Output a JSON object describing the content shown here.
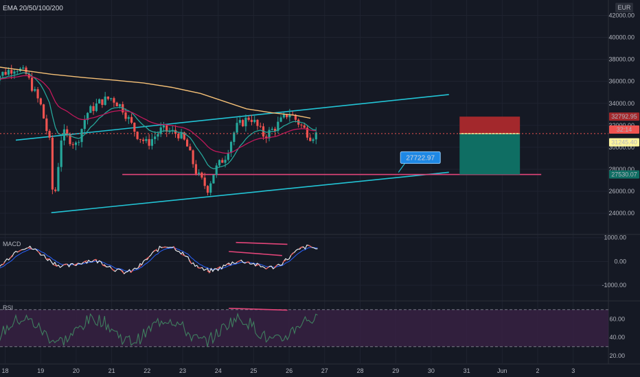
{
  "header": {
    "indicator_title": "EMA 20/50/100/200",
    "currency": "EUR"
  },
  "panes": {
    "macd_label": "MACD",
    "rsi_label": "RSI"
  },
  "colors": {
    "bg": "#151924",
    "up": "#26a69a",
    "down": "#ef5350",
    "ema_fast": "#26a69a",
    "ema_mid": "#c2185b",
    "ema_slow": "#f6c177",
    "channel": "#22c5d6",
    "support": "#e5457a",
    "rsi_fill": "#3b2146",
    "tp_zone": "#0f6e63",
    "sl_zone": "#a3282c"
  },
  "chart_data": {
    "type": "candlestick",
    "x_ticks": [
      "18",
      "19",
      "20",
      "21",
      "22",
      "23",
      "24",
      "25",
      "26",
      "27",
      "28",
      "29",
      "30",
      "31",
      "Jun",
      "2",
      "3"
    ],
    "y_ticks": [
      24000,
      26000,
      28000,
      30000,
      32000,
      34000,
      36000,
      38000,
      40000,
      42000
    ],
    "ylim": [
      22200,
      43400
    ],
    "price_labels": {
      "stop_loss": "32792.95",
      "countdown": "32:14",
      "current": "31245.40",
      "target": "27530.07",
      "callout": "27722.97"
    },
    "levels": {
      "stop_loss": 32792.95,
      "entry": 31245.4,
      "target": 27530.07,
      "support": 27530.07
    },
    "channel_upper": [
      [
        0.3,
        30650
      ],
      [
        12.5,
        34800
      ]
    ],
    "channel_lower": [
      [
        1.3,
        24050
      ],
      [
        12.5,
        27730
      ]
    ],
    "support_line": [
      [
        3.3,
        27530
      ],
      [
        15.1,
        27530
      ]
    ],
    "callout_point": [
      11.0,
      27722.97
    ],
    "ema_200": [
      [
        -0.4,
        37400
      ],
      [
        0.5,
        37000
      ],
      [
        1.3,
        36650
      ],
      [
        2.2,
        36350
      ],
      [
        3.1,
        36100
      ],
      [
        3.9,
        35850
      ],
      [
        4.7,
        35450
      ],
      [
        5.5,
        34900
      ],
      [
        6.1,
        34250
      ],
      [
        6.8,
        33500
      ],
      [
        7.5,
        33150
      ],
      [
        8.2,
        32900
      ],
      [
        8.6,
        32650
      ]
    ],
    "macd_ticks": [
      1000,
      0,
      -1000
    ],
    "macd_ylim": [
      -1600,
      1050
    ],
    "rsi_ticks": [
      60,
      40,
      20
    ],
    "rsi_ylim": [
      12,
      78
    ],
    "rsi_bands": [
      70,
      30
    ],
    "divergence_price": [
      [
        6.3,
        32900
      ],
      [
        8.0,
        33400
      ]
    ],
    "divergence_macd": [
      [
        6.5,
        800
      ],
      [
        7.95,
        720
      ]
    ],
    "divergence_macd_2": [
      [
        6.3,
        420
      ],
      [
        7.8,
        250
      ]
    ],
    "divergence_rsi": [
      [
        6.3,
        71.5
      ],
      [
        7.95,
        69.5
      ]
    ],
    "trade_box_x": [
      12.8,
      14.5
    ]
  }
}
